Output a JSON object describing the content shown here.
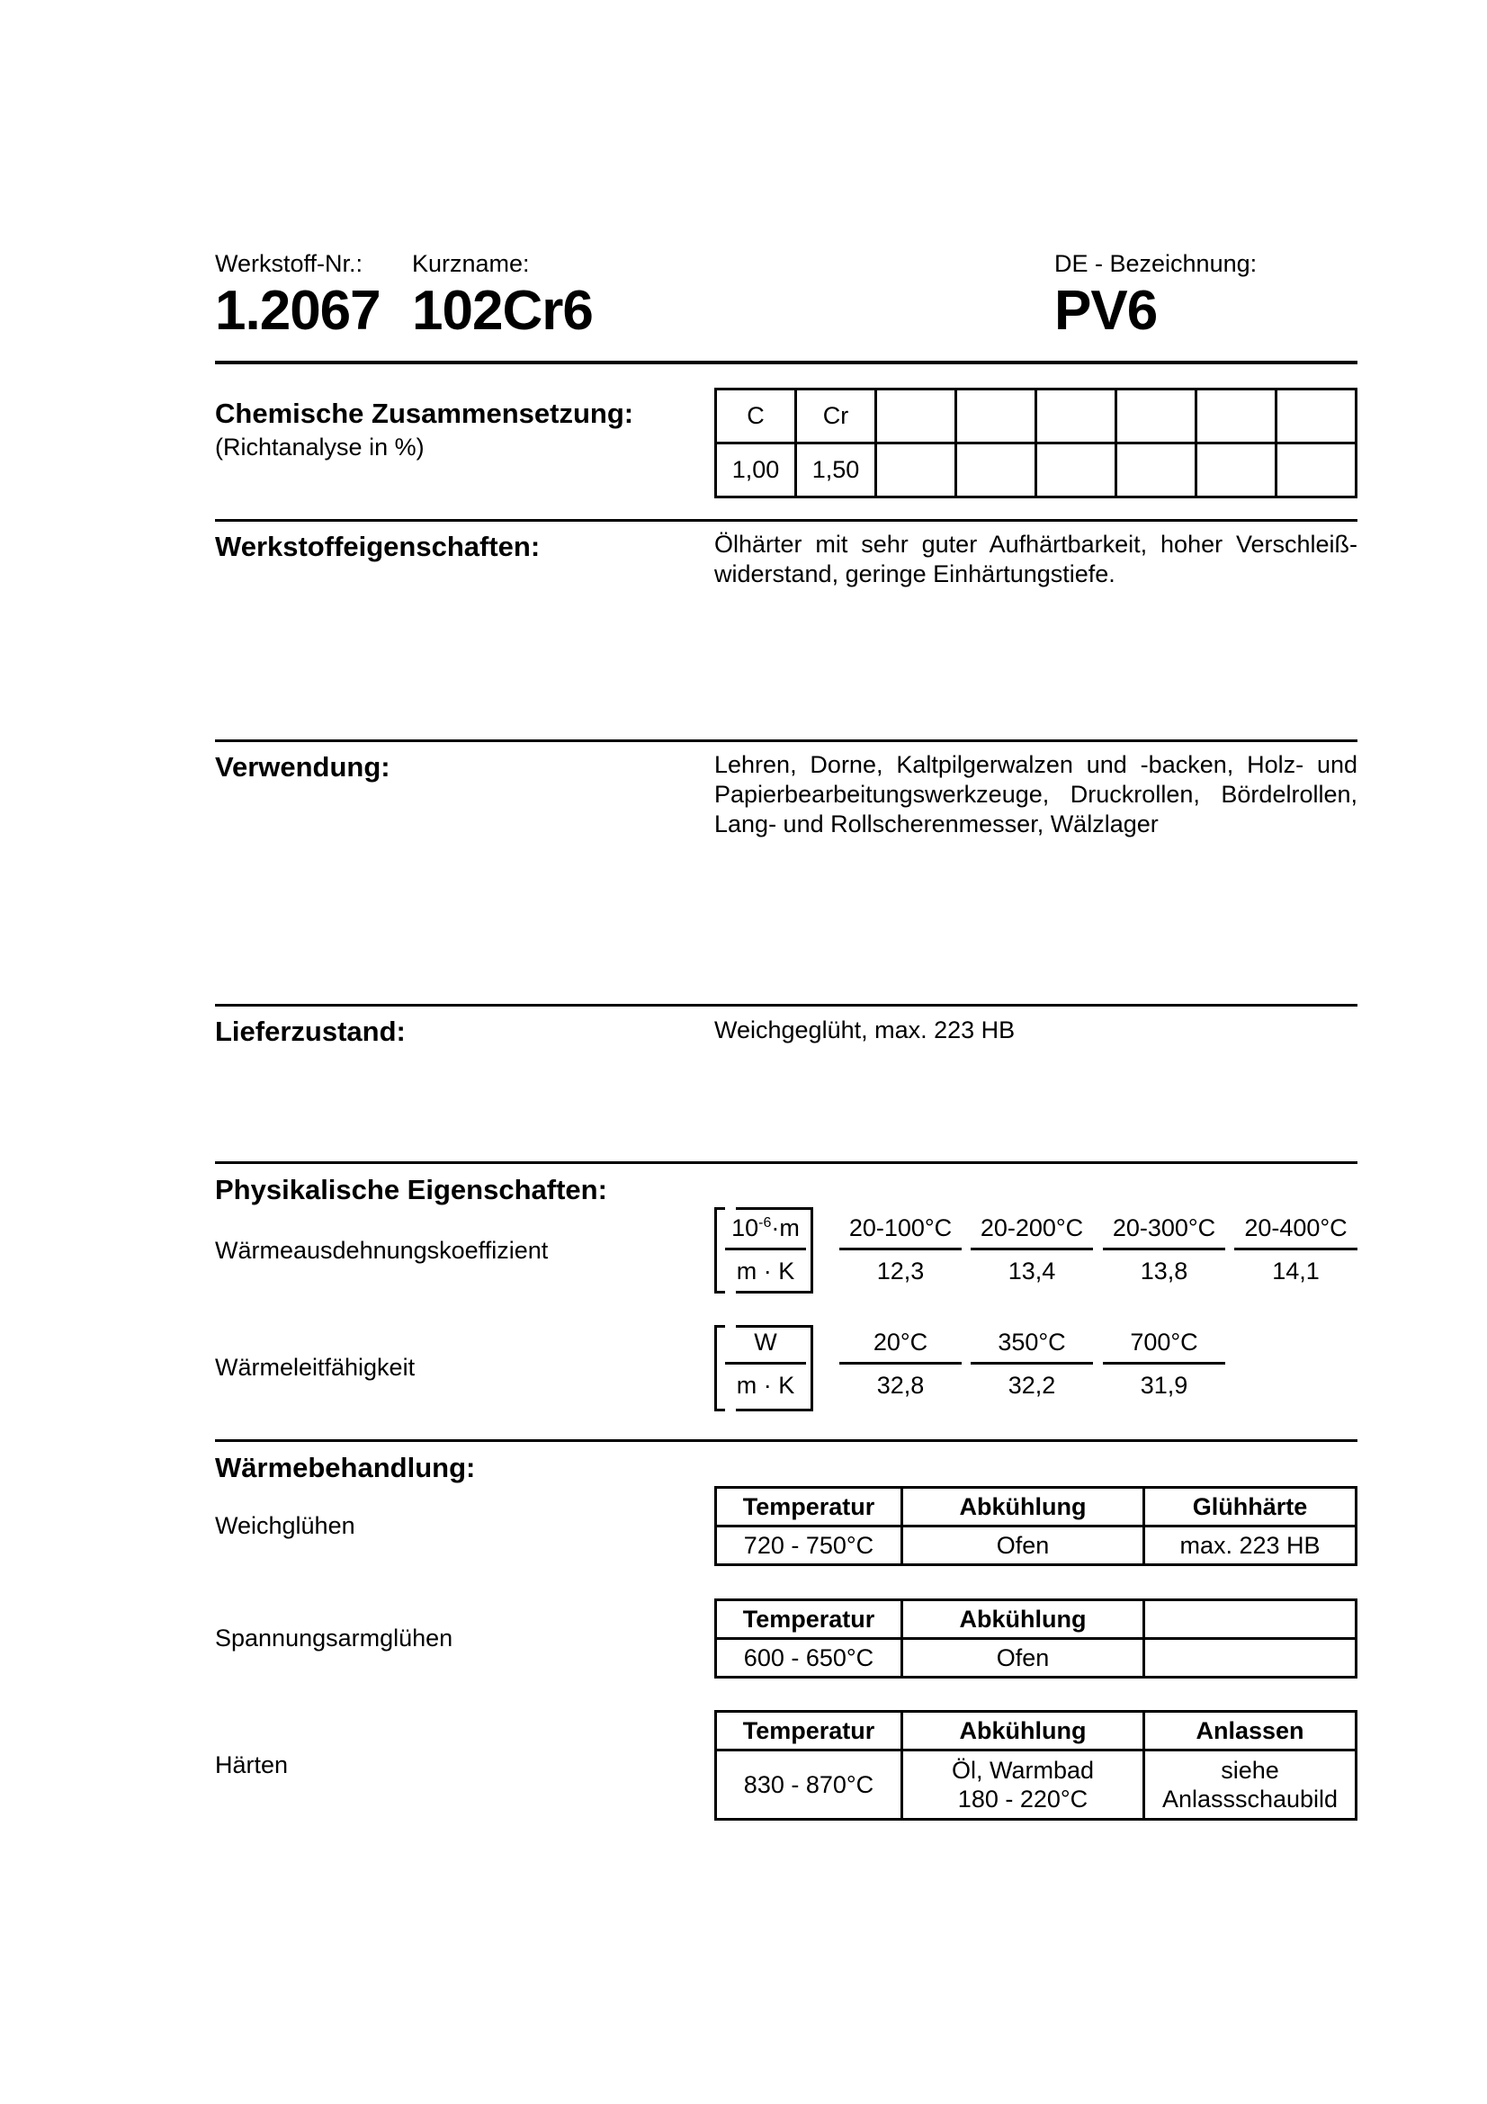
{
  "header": {
    "werkstoff_label": "Werkstoff-Nr.:",
    "werkstoff_value": "1.2067",
    "kurzname_label": "Kurzname:",
    "kurzname_value": "102Cr6",
    "de_label": "DE - Bezeichnung:",
    "de_value": "PV6"
  },
  "chemie": {
    "title": "Chemische Zusammensetzung:",
    "subtitle": "(Richtanalyse in %)",
    "elements": [
      "C",
      "Cr",
      "",
      "",
      "",
      "",
      "",
      ""
    ],
    "values": [
      "1,00",
      "1,50",
      "",
      "",
      "",
      "",
      "",
      ""
    ]
  },
  "eigenschaften": {
    "title": "Werkstoffeigenschaften:",
    "text": "Ölhärter mit sehr guter Aufhärtbarkeit, hoher Verschleiß-widerstand, geringe Einhärtungstiefe."
  },
  "verwendung": {
    "title": "Verwendung:",
    "text": "Lehren, Dorne, Kaltpilgerwalzen und -backen, Holz- und Papierbearbeitungswerkzeuge, Druckrollen, Bördelrollen, Lang- und Rollscherenmesser, Wälzlager"
  },
  "lieferzustand": {
    "title": "Lieferzustand:",
    "text": "Weichgeglüht, max. 223 HB"
  },
  "physik": {
    "title": "Physikalische Eigenschaften:",
    "ausdehnung": {
      "label": "Wärmeausdehnungskoeffizient",
      "unit_num_base": "10",
      "unit_num_exp": "-6",
      "unit_num_tail": "·m",
      "unit_den": "m · K",
      "ranges": [
        "20-100°C",
        "20-200°C",
        "20-300°C",
        "20-400°C"
      ],
      "values": [
        "12,3",
        "13,4",
        "13,8",
        "14,1"
      ]
    },
    "leitfaehigkeit": {
      "label": "Wärmeleitfähigkeit",
      "unit_num": "W",
      "unit_den": "m · K",
      "temps": [
        "20°C",
        "350°C",
        "700°C"
      ],
      "values": [
        "32,8",
        "32,2",
        "31,9"
      ]
    }
  },
  "waermebehandlung": {
    "title": "Wärmebehandlung:",
    "weichgluehen": {
      "label": "Weichglühen",
      "headers": [
        "Temperatur",
        "Abkühlung",
        "Glühhärte"
      ],
      "values": [
        "720 - 750°C",
        "Ofen",
        "max. 223 HB"
      ]
    },
    "spannungsarm": {
      "label": "Spannungsarmglühen",
      "headers": [
        "Temperatur",
        "Abkühlung",
        ""
      ],
      "values": [
        "600 - 650°C",
        "Ofen",
        ""
      ]
    },
    "haerten": {
      "label": "Härten",
      "headers": [
        "Temperatur",
        "Abkühlung",
        "Anlassen"
      ],
      "values": [
        "830 - 870°C",
        "Öl, Warmbad",
        "siehe"
      ],
      "values2": [
        "",
        "180 - 220°C",
        "Anlassschaubild"
      ]
    }
  }
}
